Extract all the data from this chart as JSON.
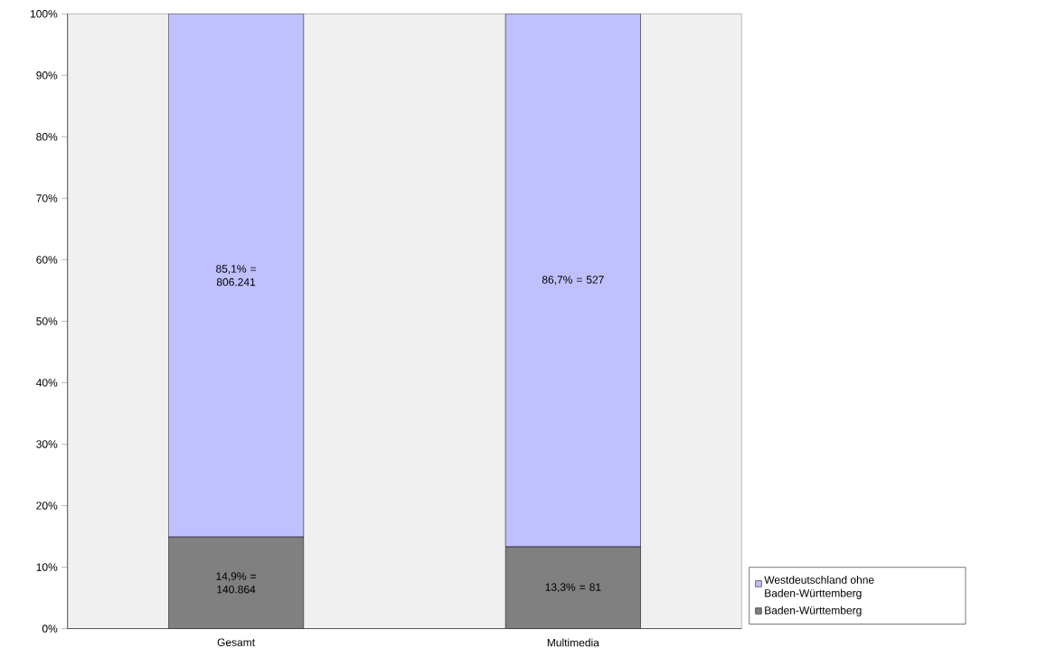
{
  "chart_data": {
    "type": "bar",
    "stacked": true,
    "categories": [
      "Gesamt",
      "Multimedia"
    ],
    "series": [
      {
        "name": "Baden-Württemberg",
        "color": "#808080",
        "values": [
          14.9,
          13.3
        ],
        "value_labels": [
          "14,9% = 140.864",
          "13,3% = 81"
        ]
      },
      {
        "name": "Westdeutschland ohne Baden-Württemberg",
        "color": "#c0c0ff",
        "values": [
          85.1,
          86.7
        ],
        "value_labels": [
          "85,1% = 806.241",
          "86,7% = 527"
        ]
      }
    ],
    "ylim": [
      0,
      100
    ],
    "yticks": [
      {
        "value": 0,
        "label": "0%"
      },
      {
        "value": 10,
        "label": "10%"
      },
      {
        "value": 20,
        "label": "20%"
      },
      {
        "value": 30,
        "label": "30%"
      },
      {
        "value": 40,
        "label": "40%"
      },
      {
        "value": 50,
        "label": "50%"
      },
      {
        "value": 60,
        "label": "60%"
      },
      {
        "value": 70,
        "label": "70%"
      },
      {
        "value": 80,
        "label": "80%"
      },
      {
        "value": 90,
        "label": "90%"
      },
      {
        "value": 100,
        "label": "100%"
      }
    ],
    "grid": false,
    "legend": "right"
  }
}
